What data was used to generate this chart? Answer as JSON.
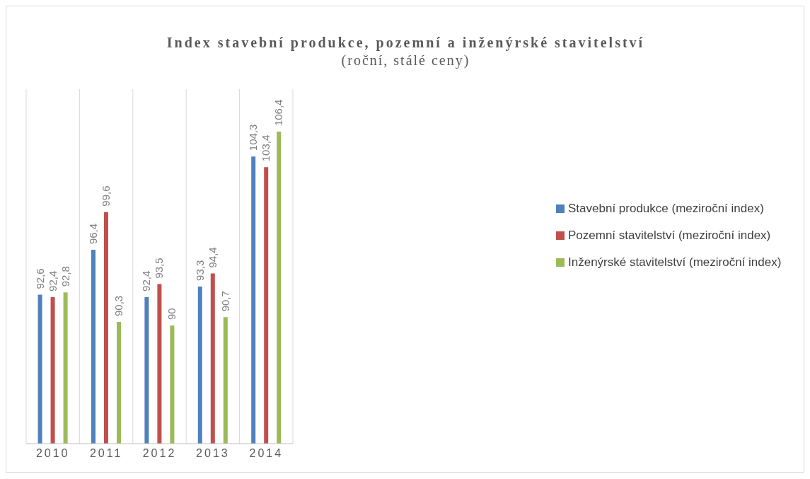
{
  "chart_data": {
    "type": "bar",
    "title": "Index stavební produkce, pozemní a inženýrské stavitelství",
    "subtitle": "(roční, stálé ceny)",
    "categories": [
      "2010",
      "2011",
      "2012",
      "2013",
      "2014"
    ],
    "series": [
      {
        "name": "Stavební produkce (meziroční index)",
        "color": "#4f81bd",
        "values": [
          92.6,
          96.4,
          92.4,
          93.3,
          104.3
        ],
        "value_labels": [
          "92,6",
          "96,4",
          "92,4",
          "93,3",
          "104,3"
        ]
      },
      {
        "name": "Pozemní stavitelství (meziroční index)",
        "color": "#c0504d",
        "values": [
          92.4,
          99.6,
          93.5,
          94.4,
          103.4
        ],
        "value_labels": [
          "92,4",
          "99,6",
          "93,5",
          "94,4",
          "103,4"
        ]
      },
      {
        "name": "Inženýrské stavitelství (meziroční index)",
        "color": "#9bbb59",
        "values": [
          92.8,
          90.3,
          90,
          90.7,
          106.4
        ],
        "value_labels": [
          "92,8",
          "90,3",
          "90",
          "90,7",
          "106,4"
        ]
      }
    ],
    "ylim": [
      80,
      110
    ],
    "tick_labels": "x",
    "grid": "x",
    "legend": "right"
  }
}
